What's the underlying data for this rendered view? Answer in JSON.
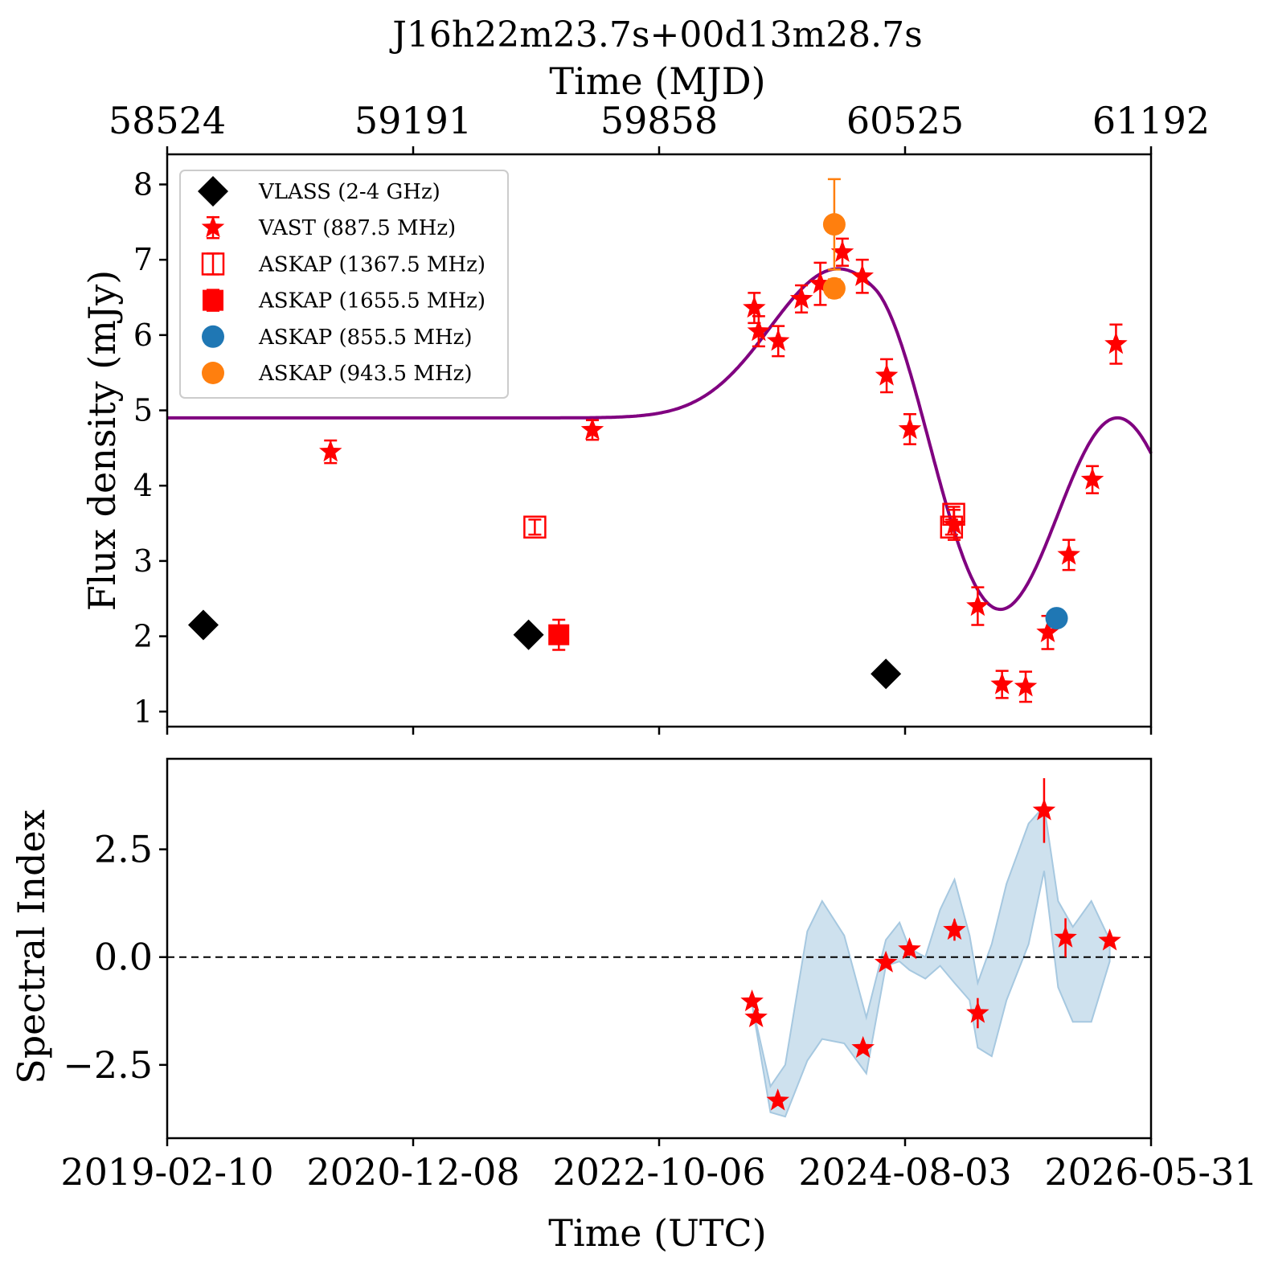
{
  "colors": {
    "vlass": "#000000",
    "vast": "#ff0000",
    "askap": "#ff0000",
    "askap855": "#1f77b4",
    "askap943": "#ff7f0e",
    "model": "#800080",
    "band": "#a6c8e0"
  },
  "chart_data": [
    {
      "type": "scatter",
      "title": "J16h22m23.7s+00d13m28.7s",
      "secondary_xlabel": "Time (MJD)",
      "secondary_xticks": [
        58524,
        59191,
        59858,
        60525,
        61192
      ],
      "ylabel": "Flux density (mJy)",
      "xlim_mjd": [
        58524,
        61192
      ],
      "ylim": [
        0.8,
        8.4
      ],
      "yticks": [
        1,
        2,
        3,
        4,
        5,
        6,
        7,
        8
      ],
      "legend_position": "upper-left",
      "series": [
        {
          "name": "VLASS (2-4 GHz)",
          "marker": "diamond",
          "color": "#000000",
          "points": [
            [
              58622,
              2.15,
              0.1
            ],
            [
              59504,
              2.02,
              0.1
            ],
            [
              60473,
              1.5,
              0.06
            ]
          ]
        },
        {
          "name": "VAST (887.5 MHz)",
          "marker": "star",
          "color": "#ff0000",
          "points": [
            [
              58967,
              4.45,
              0.15
            ],
            [
              59677,
              4.74,
              0.13
            ],
            [
              60116,
              6.36,
              0.2
            ],
            [
              60128,
              6.05,
              0.2
            ],
            [
              60181,
              5.92,
              0.2
            ],
            [
              60244,
              6.48,
              0.18
            ],
            [
              60295,
              6.68,
              0.28
            ],
            [
              60355,
              7.1,
              0.18
            ],
            [
              60409,
              6.78,
              0.22
            ],
            [
              60475,
              5.46,
              0.22
            ],
            [
              60538,
              4.75,
              0.2
            ],
            [
              60658,
              3.48,
              0.2
            ],
            [
              60722,
              2.4,
              0.25
            ],
            [
              60788,
              1.36,
              0.18
            ],
            [
              60852,
              1.33,
              0.2
            ],
            [
              60912,
              2.05,
              0.22
            ],
            [
              60969,
              3.08,
              0.2
            ],
            [
              61033,
              4.08,
              0.18
            ],
            [
              61097,
              5.88,
              0.26
            ]
          ]
        },
        {
          "name": "ASKAP (1367.5 MHz)",
          "marker": "square-open",
          "color": "#ff0000",
          "points": [
            [
              59521,
              3.45,
              0.1
            ],
            [
              60651,
              3.45,
              0.1
            ],
            [
              60657,
              3.62,
              0.1
            ]
          ]
        },
        {
          "name": "ASKAP (1655.5 MHz)",
          "marker": "square",
          "color": "#ff0000",
          "points": [
            [
              59586,
              2.02,
              0.2
            ]
          ]
        },
        {
          "name": "ASKAP (855.5 MHz)",
          "marker": "circle",
          "color": "#1f77b4",
          "points": [
            [
              60936,
              2.24,
              0.05
            ]
          ]
        },
        {
          "name": "ASKAP (943.5 MHz)",
          "marker": "circle",
          "color": "#ff7f0e",
          "points": [
            [
              60333,
              7.47,
              0.6
            ],
            [
              60333,
              6.62,
              0.12
            ]
          ]
        }
      ],
      "model_curve": {
        "baseline": 4.9,
        "bump_amplitude": 1.98,
        "bump_center_mjd": 60344,
        "bump_sigma_days": 185,
        "sine_amplitude": 2.67,
        "sine_center_mjd": 60771,
        "sine_half_period_days": 330,
        "sine_start_mjd": 60441
      }
    },
    {
      "type": "scatter",
      "xlabel": "Time (UTC)",
      "ylabel": "Spectral Index",
      "xlim_mjd": [
        58524,
        61192
      ],
      "xticks": [
        "2019-02-10",
        "2020-12-08",
        "2022-10-06",
        "2024-08-03",
        "2026-05-31"
      ],
      "ylim": [
        -4.2,
        4.6
      ],
      "yticks": [
        2.5,
        0.0,
        -2.5
      ],
      "ytick_labels": [
        "2.5",
        "0.0",
        "−2.5"
      ],
      "reference_line": 0.0,
      "points": [
        [
          60110,
          -1.03,
          0.1
        ],
        [
          60121,
          -1.4,
          0.12
        ],
        [
          60180,
          -3.33,
          0.12
        ],
        [
          60411,
          -2.11,
          0.12
        ],
        [
          60473,
          -0.13,
          0.12
        ],
        [
          60537,
          0.18,
          0.15
        ],
        [
          60659,
          0.63,
          0.25
        ],
        [
          60722,
          -1.3,
          0.35
        ],
        [
          60902,
          3.4,
          0.75
        ],
        [
          60960,
          0.45,
          0.45
        ],
        [
          61080,
          0.38,
          0.12
        ]
      ],
      "band": {
        "mjd": [
          60110,
          60160,
          60200,
          60260,
          60300,
          60360,
          60420,
          60473,
          60510,
          60537,
          60580,
          60620,
          60659,
          60700,
          60722,
          60760,
          60800,
          60860,
          60902,
          60940,
          60980,
          61030,
          61080
        ],
        "upper": [
          -1.1,
          -3.0,
          -2.5,
          0.6,
          1.3,
          0.5,
          -1.4,
          0.4,
          0.8,
          0.2,
          0.0,
          1.1,
          1.8,
          0.5,
          -0.6,
          0.3,
          1.7,
          3.1,
          3.5,
          1.3,
          0.7,
          1.3,
          0.4
        ],
        "lower": [
          -1.1,
          -3.6,
          -3.7,
          -2.4,
          -1.9,
          -2.0,
          -2.7,
          -0.2,
          -0.1,
          -0.3,
          -0.5,
          -0.2,
          -0.6,
          -1.0,
          -2.1,
          -2.3,
          -1.0,
          0.3,
          2.0,
          -0.7,
          -1.5,
          -1.5,
          -0.1
        ]
      }
    }
  ]
}
